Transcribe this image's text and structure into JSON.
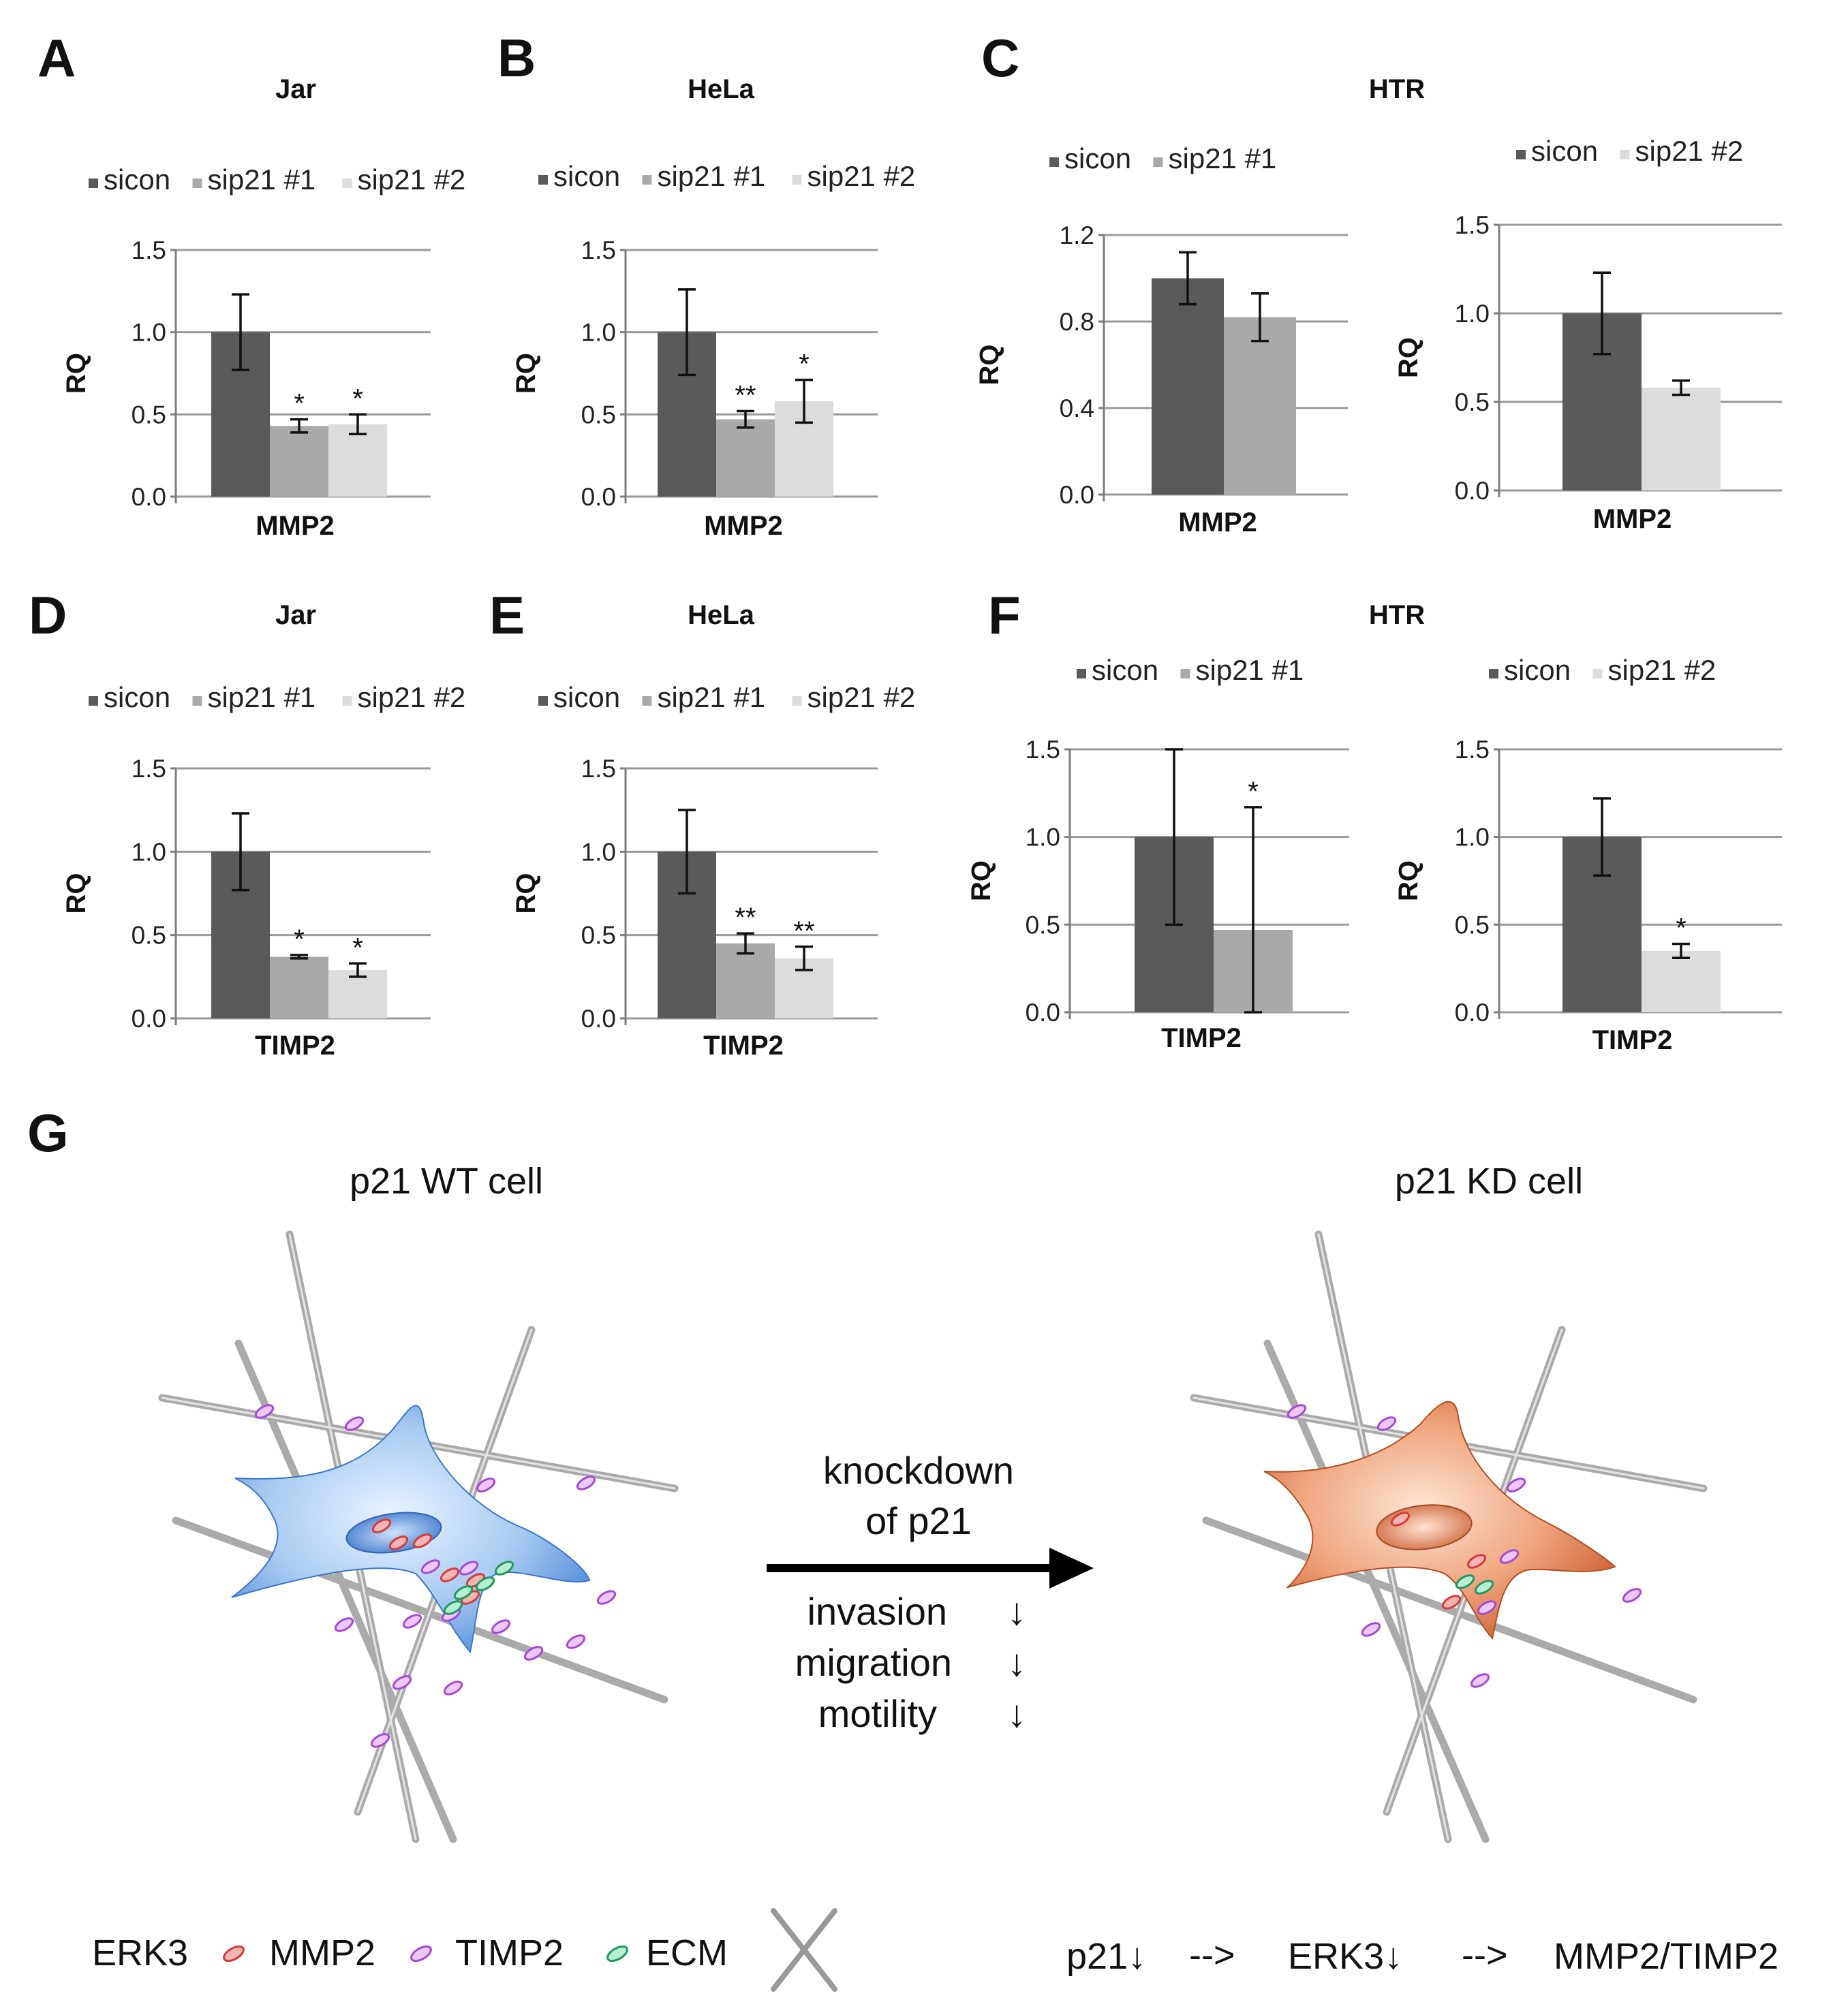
{
  "figure": {
    "panel_letters": [
      "A",
      "B",
      "C",
      "D",
      "E",
      "F",
      "G"
    ]
  },
  "colors": {
    "sicon": "#5a5a5a",
    "sip21_1": "#a9a9a9",
    "sip21_2": "#dcdcdc",
    "erk3": "#e05a5a",
    "mmp2": "#b85ce0",
    "timp2": "#b85ce0",
    "ecm": "#2fa870",
    "cell_wt": "#7fb0ea",
    "cell_kd": "#e8875a"
  },
  "chart_data": [
    {
      "id": "A",
      "type": "bar",
      "title": "Jar",
      "legend": [
        "sicon",
        "sip21 #1",
        "sip21 #2"
      ],
      "categories": [
        "MMP2"
      ],
      "xlabel": "MMP2",
      "ylabel": "RQ",
      "ylim": [
        0,
        1.5
      ],
      "yticks": [
        "0.0",
        "0.5",
        "1.0",
        "1.5"
      ],
      "series": [
        {
          "name": "sicon",
          "values": [
            1.0
          ],
          "error": [
            0.23
          ],
          "sig": ""
        },
        {
          "name": "sip21 #1",
          "values": [
            0.43
          ],
          "error": [
            0.04
          ],
          "sig": "*"
        },
        {
          "name": "sip21 #2",
          "values": [
            0.44
          ],
          "error": [
            0.06
          ],
          "sig": "*"
        }
      ]
    },
    {
      "id": "B",
      "type": "bar",
      "title": "HeLa",
      "legend": [
        "sicon",
        "sip21 #1",
        "sip21 #2"
      ],
      "categories": [
        "MMP2"
      ],
      "xlabel": "MMP2",
      "ylabel": "RQ",
      "ylim": [
        0,
        1.5
      ],
      "yticks": [
        "0.0",
        "0.5",
        "1.0",
        "1.5"
      ],
      "series": [
        {
          "name": "sicon",
          "values": [
            1.0
          ],
          "error": [
            0.26
          ],
          "sig": ""
        },
        {
          "name": "sip21 #1",
          "values": [
            0.47
          ],
          "error": [
            0.05
          ],
          "sig": "**"
        },
        {
          "name": "sip21 #2",
          "values": [
            0.58
          ],
          "error": [
            0.13
          ],
          "sig": "*"
        }
      ]
    },
    {
      "id": "C1",
      "type": "bar",
      "title": "HTR",
      "legend": [
        "sicon",
        "sip21 #1"
      ],
      "categories": [
        "MMP2"
      ],
      "xlabel": "MMP2",
      "ylabel": "RQ",
      "ylim": [
        0,
        1.2
      ],
      "yticks": [
        "0.0",
        "0.4",
        "0.8",
        "1.2"
      ],
      "series": [
        {
          "name": "sicon",
          "values": [
            1.0
          ],
          "error": [
            0.12
          ],
          "sig": ""
        },
        {
          "name": "sip21 #1",
          "values": [
            0.82
          ],
          "error": [
            0.11
          ],
          "sig": ""
        }
      ]
    },
    {
      "id": "C2",
      "type": "bar",
      "title": "",
      "legend": [
        "sicon",
        "sip21 #2"
      ],
      "categories": [
        "MMP2"
      ],
      "xlabel": "MMP2",
      "ylabel": "RQ",
      "ylim": [
        0,
        1.5
      ],
      "yticks": [
        "0.0",
        "0.5",
        "1.0",
        "1.5"
      ],
      "series": [
        {
          "name": "sicon",
          "values": [
            1.0
          ],
          "error": [
            0.23
          ],
          "sig": ""
        },
        {
          "name": "sip21 #2",
          "values": [
            0.58
          ],
          "error": [
            0.04
          ],
          "sig": ""
        }
      ]
    },
    {
      "id": "D",
      "type": "bar",
      "title": "Jar",
      "legend": [
        "sicon",
        "sip21 #1",
        "sip21 #2"
      ],
      "categories": [
        "TIMP2"
      ],
      "xlabel": "TIMP2",
      "ylabel": "RQ",
      "ylim": [
        0,
        1.5
      ],
      "yticks": [
        "0.0",
        "0.5",
        "1.0",
        "1.5"
      ],
      "series": [
        {
          "name": "sicon",
          "values": [
            1.0
          ],
          "error": [
            0.23
          ],
          "sig": ""
        },
        {
          "name": "sip21 #1",
          "values": [
            0.37
          ],
          "error": [
            0.01
          ],
          "sig": "*"
        },
        {
          "name": "sip21 #2",
          "values": [
            0.29
          ],
          "error": [
            0.04
          ],
          "sig": "*"
        }
      ]
    },
    {
      "id": "E",
      "type": "bar",
      "title": "HeLa",
      "legend": [
        "sicon",
        "sip21 #1",
        "sip21 #2"
      ],
      "categories": [
        "TIMP2"
      ],
      "xlabel": "TIMP2",
      "ylabel": "RQ",
      "ylim": [
        0,
        1.5
      ],
      "yticks": [
        "0.0",
        "0.5",
        "1.0",
        "1.5"
      ],
      "series": [
        {
          "name": "sicon",
          "values": [
            1.0
          ],
          "error": [
            0.25
          ],
          "sig": ""
        },
        {
          "name": "sip21 #1",
          "values": [
            0.45
          ],
          "error": [
            0.06
          ],
          "sig": "**"
        },
        {
          "name": "sip21 #2",
          "values": [
            0.36
          ],
          "error": [
            0.07
          ],
          "sig": "**"
        }
      ]
    },
    {
      "id": "F1",
      "type": "bar",
      "title": "HTR",
      "legend": [
        "sicon",
        "sip21 #1"
      ],
      "categories": [
        "TIMP2"
      ],
      "xlabel": "TIMP2",
      "ylabel": "RQ",
      "ylim": [
        0,
        1.5
      ],
      "yticks": [
        "0.0",
        "0.5",
        "1.0",
        "1.5"
      ],
      "series": [
        {
          "name": "sicon",
          "values": [
            1.0
          ],
          "error": [
            0.5
          ],
          "sig": ""
        },
        {
          "name": "sip21 #1",
          "values": [
            0.47
          ],
          "error": [
            0.7
          ],
          "sig": "*"
        }
      ]
    },
    {
      "id": "F2",
      "type": "bar",
      "title": "",
      "legend": [
        "sicon",
        "sip21 #2"
      ],
      "categories": [
        "TIMP2"
      ],
      "xlabel": "TIMP2",
      "ylabel": "RQ",
      "ylim": [
        0,
        1.5
      ],
      "yticks": [
        "0.0",
        "0.5",
        "1.0",
        "1.5"
      ],
      "series": [
        {
          "name": "sicon",
          "values": [
            1.0
          ],
          "error": [
            0.22
          ],
          "sig": ""
        },
        {
          "name": "sip21 #2",
          "values": [
            0.35
          ],
          "error": [
            0.04
          ],
          "sig": "*"
        }
      ]
    }
  ],
  "panel_g": {
    "wt_title": "p21 WT cell",
    "kd_title": "p21 KD cell",
    "arrow_label_line1": "knockdown",
    "arrow_label_line2": "of p21",
    "effects": [
      {
        "label": "invasion",
        "arrow": "↓"
      },
      {
        "label": "migration",
        "arrow": "↓"
      },
      {
        "label": "motility",
        "arrow": "↓"
      }
    ],
    "key": {
      "erk3": "ERK3",
      "mmp2": "MMP2",
      "timp2": "TIMP2",
      "ecm": "ECM"
    },
    "pathway": {
      "step1": "p21↓",
      "arrow1": "-->",
      "step2": "ERK3↓",
      "arrow2": "-->",
      "step3": "MMP2/TIMP2"
    }
  }
}
